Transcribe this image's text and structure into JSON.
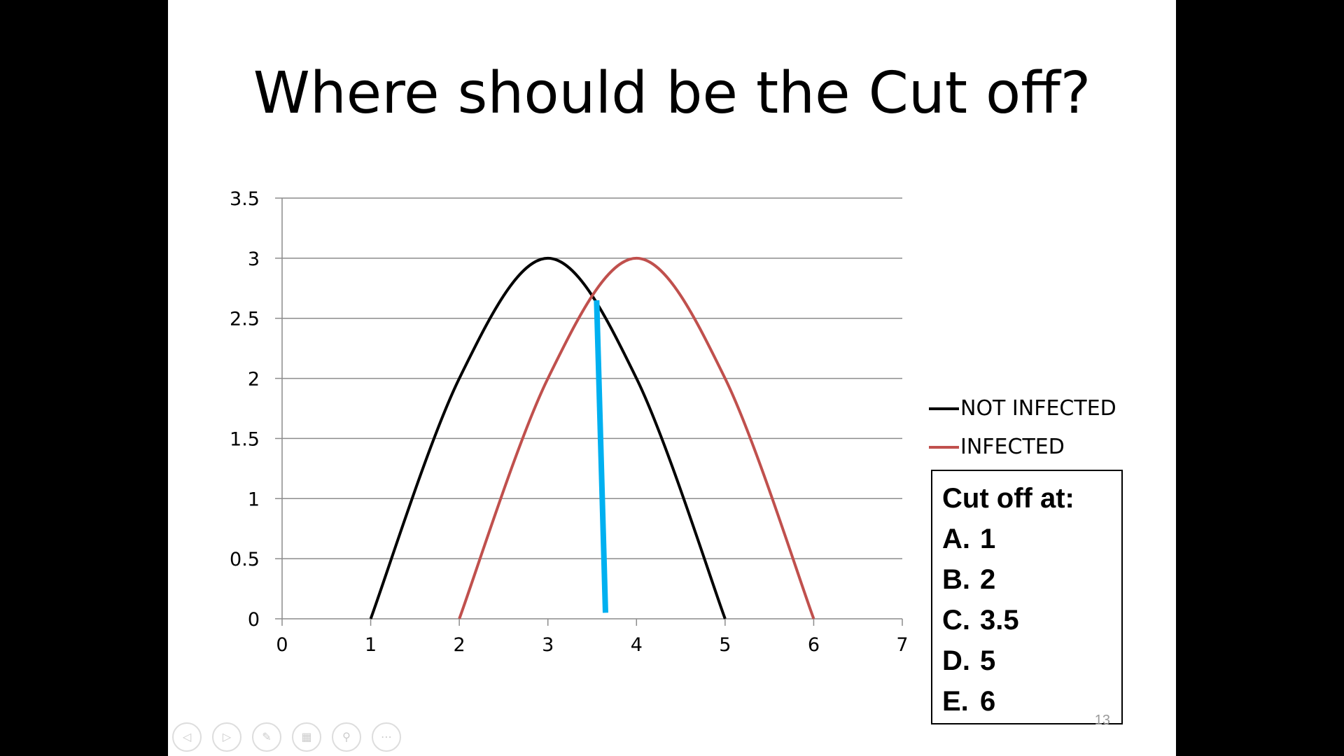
{
  "slide": {
    "title": "Where should be the Cut off?",
    "page_number": "13"
  },
  "chart_data": {
    "type": "line",
    "title": "",
    "xlabel": "",
    "ylabel": "",
    "xlim": [
      0,
      7
    ],
    "ylim": [
      0,
      3.5
    ],
    "x_ticks": [
      "0",
      "1",
      "2",
      "3",
      "4",
      "5",
      "6",
      "7"
    ],
    "y_ticks": [
      "0",
      "0.5",
      "1",
      "1.5",
      "2",
      "2.5",
      "3",
      "3.5"
    ],
    "grid": "horizontal",
    "legend_position": "right",
    "series": [
      {
        "name": "NOT INFECTED",
        "color": "#000000",
        "x": [
          1,
          2,
          3,
          4,
          5
        ],
        "y": [
          0,
          2,
          3,
          2,
          0
        ]
      },
      {
        "name": "INFECTED",
        "color": "#C0504D",
        "x": [
          2,
          3,
          4,
          5,
          6
        ],
        "y": [
          0,
          2,
          3,
          2,
          0
        ]
      }
    ],
    "annotations": [
      {
        "type": "line",
        "color": "#00B0F0",
        "x": [
          3.55,
          3.65
        ],
        "y": [
          2.65,
          0.05
        ]
      }
    ]
  },
  "answer_box": {
    "title": "Cut off at:",
    "choices": [
      {
        "letter": "A.",
        "value": "1"
      },
      {
        "letter": "B.",
        "value": "2"
      },
      {
        "letter": "C.",
        "value": "3.5"
      },
      {
        "letter": "D.",
        "value": "5"
      },
      {
        "letter": "E.",
        "value": "6"
      }
    ]
  },
  "nav": {
    "buttons": [
      {
        "icon": "previous-icon",
        "glyph": "◁"
      },
      {
        "icon": "next-icon",
        "glyph": "▷"
      },
      {
        "icon": "pen-icon",
        "glyph": "✎"
      },
      {
        "icon": "slides-grid-icon",
        "glyph": "▦"
      },
      {
        "icon": "zoom-icon",
        "glyph": "⚲"
      },
      {
        "icon": "more-options-icon",
        "glyph": "⋯"
      }
    ]
  }
}
